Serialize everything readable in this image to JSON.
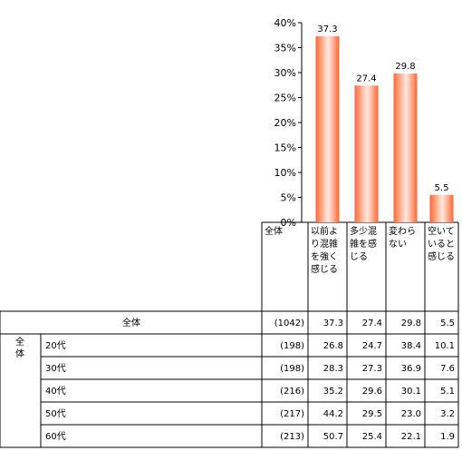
{
  "chart_data": {
    "type": "bar",
    "categories": [
      "以前より混雑を強く感じる",
      "多少混雑を感じる",
      "変わらない",
      "空いていると感じる"
    ],
    "category_lines": [
      [
        "以前よ",
        "り混雑",
        "を強く",
        "感じる"
      ],
      [
        "多少混",
        "雑を感",
        "じる"
      ],
      [
        "変わら",
        "ない"
      ],
      [
        "空いて",
        "いると",
        "感じる"
      ]
    ],
    "values": [
      37.3,
      27.4,
      29.8,
      5.5
    ],
    "value_labels": [
      "37.3",
      "27.4",
      "29.8",
      "5.5"
    ],
    "y_ticks": [
      "0%",
      "5%",
      "10%",
      "15%",
      "20%",
      "25%",
      "30%",
      "35%",
      "40%"
    ],
    "ylim": [
      0,
      40
    ],
    "bar_color": "#ff6633",
    "grid": false
  },
  "table": {
    "header_cell": "全体",
    "total_row": {
      "label": "全体",
      "n": "(1042)",
      "values": [
        "37.3",
        "27.4",
        "29.8",
        "5.5"
      ]
    },
    "group_label": "全体",
    "rows": [
      {
        "label": "20代",
        "n": "(198)",
        "values": [
          "26.8",
          "24.7",
          "38.4",
          "10.1"
        ]
      },
      {
        "label": "30代",
        "n": "(198)",
        "values": [
          "28.3",
          "27.3",
          "36.9",
          "7.6"
        ]
      },
      {
        "label": "40代",
        "n": "(216)",
        "values": [
          "35.2",
          "29.6",
          "30.1",
          "5.1"
        ]
      },
      {
        "label": "50代",
        "n": "(217)",
        "values": [
          "44.2",
          "29.5",
          "23.0",
          "3.2"
        ]
      },
      {
        "label": "60代",
        "n": "(213)",
        "values": [
          "50.7",
          "25.4",
          "22.1",
          "1.9"
        ]
      }
    ]
  }
}
